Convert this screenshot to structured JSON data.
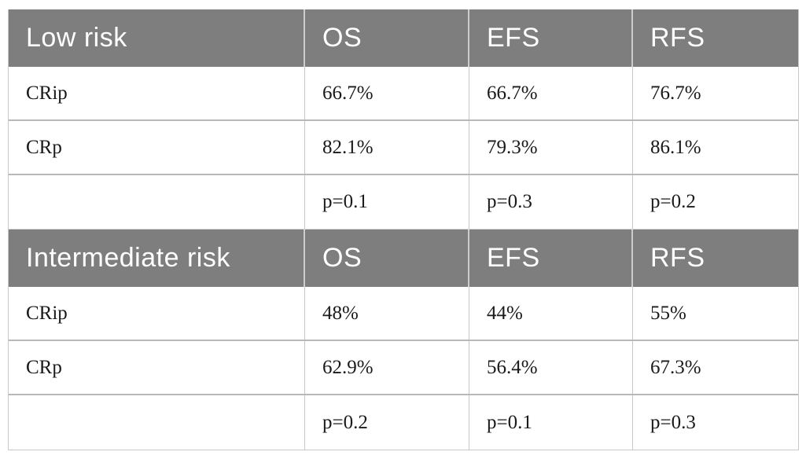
{
  "table": {
    "sections": [
      {
        "header": {
          "label": "Low risk",
          "columns": [
            "OS",
            "EFS",
            "RFS"
          ]
        },
        "rows": [
          {
            "label": "CRip",
            "values": [
              "66.7%",
              "66.7%",
              "76.7%"
            ]
          },
          {
            "label": "CRp",
            "values": [
              "82.1%",
              "79.3%",
              "86.1%"
            ]
          },
          {
            "label": "",
            "values": [
              "p=0.1",
              "p=0.3",
              "p=0.2"
            ]
          }
        ]
      },
      {
        "header": {
          "label": "Intermediate risk",
          "columns": [
            "OS",
            "EFS",
            "RFS"
          ]
        },
        "rows": [
          {
            "label": "CRip",
            "values": [
              "48%",
              "44%",
              "55%"
            ]
          },
          {
            "label": "CRp",
            "values": [
              "62.9%",
              "56.4%",
              "67.3%"
            ]
          },
          {
            "label": "",
            "values": [
              "p=0.2",
              "p=0.1",
              "p=0.3"
            ]
          }
        ]
      }
    ]
  },
  "colors": {
    "header_background": "#7e7e7e",
    "header_text": "#ffffff",
    "body_text": "#1a1a1a",
    "row_separator": "#b8b8b8"
  },
  "chart_data": {
    "type": "table",
    "tables": [
      {
        "title": "Low risk",
        "columns": [
          "OS",
          "EFS",
          "RFS"
        ],
        "rows": [
          [
            "CRip",
            "66.7%",
            "66.7%",
            "76.7%"
          ],
          [
            "CRp",
            "82.1%",
            "79.3%",
            "86.1%"
          ],
          [
            "",
            "p=0.1",
            "p=0.3",
            "p=0.2"
          ]
        ]
      },
      {
        "title": "Intermediate risk",
        "columns": [
          "OS",
          "EFS",
          "RFS"
        ],
        "rows": [
          [
            "CRip",
            "48%",
            "44%",
            "55%"
          ],
          [
            "CRp",
            "62.9%",
            "56.4%",
            "67.3%"
          ],
          [
            "",
            "p=0.2",
            "p=0.1",
            "p=0.3"
          ]
        ]
      }
    ]
  }
}
